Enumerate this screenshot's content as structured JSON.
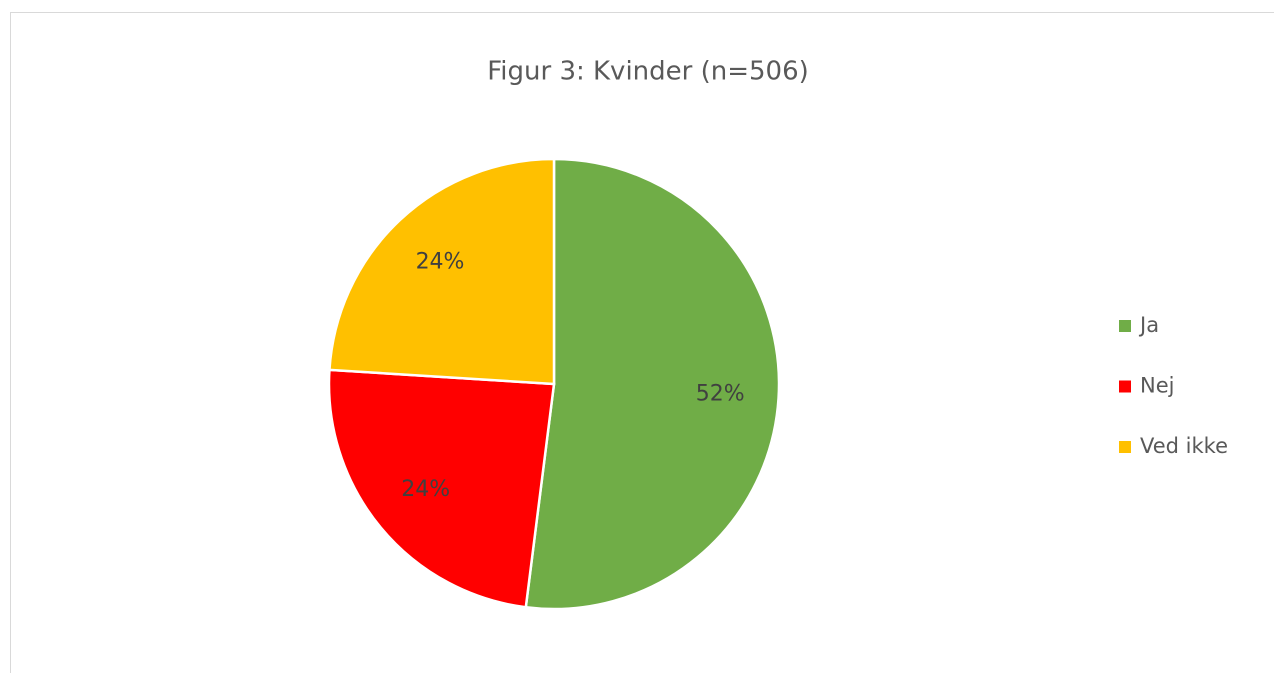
{
  "chart_data": {
    "type": "pie",
    "title": "Figur 3: Kvinder (n=506)",
    "categories": [
      "Ja",
      "Nej",
      "Ved ikke"
    ],
    "values": [
      52,
      24,
      24
    ],
    "value_labels": [
      "52%",
      "24%",
      "24%"
    ],
    "colors": [
      "#70ad47",
      "#ff0000",
      "#ffc000"
    ],
    "legend": "right"
  }
}
